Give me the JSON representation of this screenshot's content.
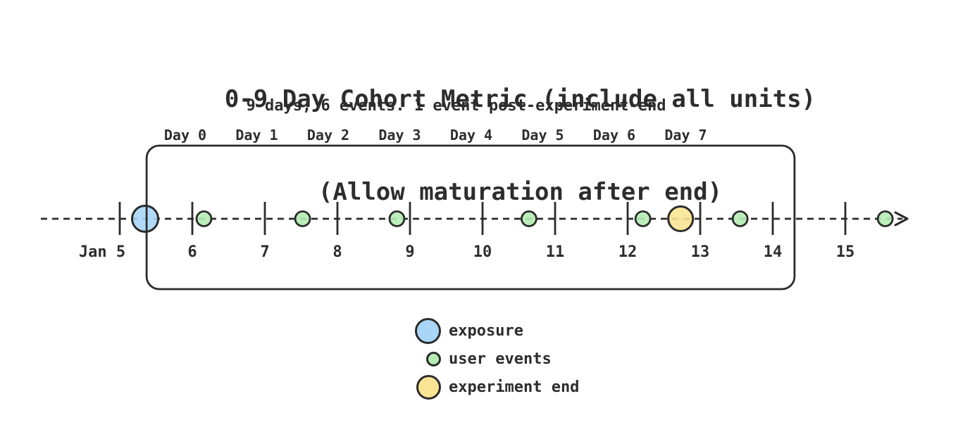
{
  "title": {
    "line1": "0-9 Day Cohort Metric (include all units)",
    "line2": "(Allow maturation after end)"
  },
  "subtitle": "9 days, 6 events. 1 event post-experiment-end",
  "day_labels": [
    "Day 0",
    "Day 1",
    "Day 2",
    "Day 3",
    "Day 4",
    "Day 5",
    "Day 6",
    "Day 7"
  ],
  "timeline": {
    "tick_labels": [
      "Jan 5",
      "6",
      "7",
      "8",
      "9",
      "10",
      "11",
      "12",
      "13",
      "14",
      "15"
    ],
    "first_tick_day": 5,
    "exposure_day": 5.35,
    "event_days": [
      6.16,
      7.52,
      8.82,
      10.64,
      12.21,
      13.55,
      15.55
    ],
    "experiment_end_day": 12.73,
    "window_start_day": 5.37,
    "window_end_day": 14.3
  },
  "legend": [
    {
      "kind": "exposure",
      "label": "exposure"
    },
    {
      "kind": "event",
      "label": "user events"
    },
    {
      "kind": "end",
      "label": "experiment end"
    }
  ],
  "colors": {
    "exposure": "#a9d6f7",
    "event": "#b4ecb4",
    "end": "#f9e494",
    "ink": "#2b2b2b"
  }
}
